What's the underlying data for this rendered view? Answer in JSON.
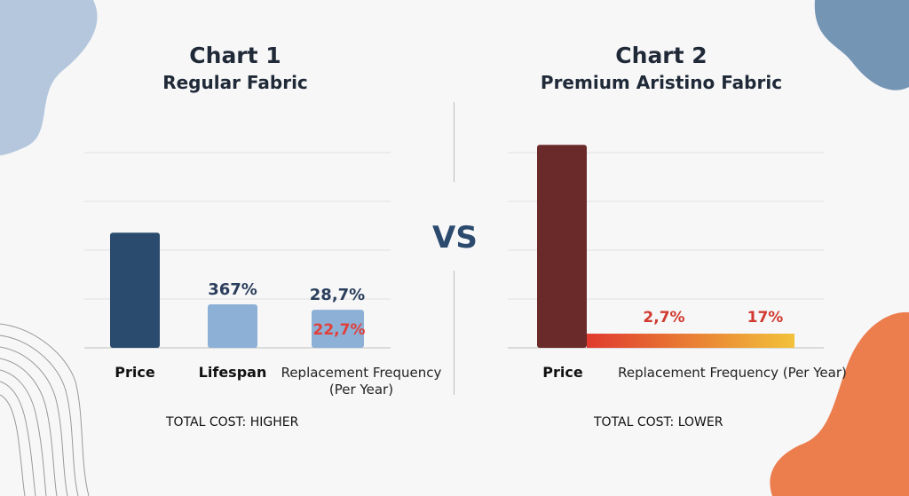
{
  "chart_data": [
    {
      "type": "bar",
      "title": "Chart 1",
      "subtitle": "Regular Fabric",
      "categories": [
        "Price",
        "Lifespan",
        "Replacement Frequency (Per Year)"
      ],
      "category_labels": [
        "Price",
        "Lifespan",
        "Replacement Frequency",
        "(Per Year)"
      ],
      "values": [
        2.36,
        0.89,
        0.78
      ],
      "data_labels": {
        "lifespan": "367%",
        "replacement_top": "28,7%",
        "replacement_inner": "22,7%"
      },
      "ylim": [
        0,
        4
      ],
      "grid": true,
      "footer": "TOTAL COST: HIGHER",
      "colors": {
        "price": "#2a4a6e",
        "others": "#8db0d6",
        "label": "#2b3f5c",
        "label_red": "#e0403a"
      }
    },
    {
      "type": "bar",
      "title": "Chart 2",
      "subtitle": "Premium Aristino Fabric",
      "categories": [
        "Price",
        "Replacement Frequency (Per Year)"
      ],
      "values": [
        4.16,
        0.29
      ],
      "data_labels": [
        "2,7%",
        "17%"
      ],
      "ylim": [
        0,
        4
      ],
      "grid": true,
      "footer": "TOTAL COST: LOWER",
      "colors": {
        "price": "#6b2a2a",
        "gradient_start": "#e03a2e",
        "gradient_end": "#f2c23a",
        "label_red": "#d13a30"
      }
    }
  ],
  "vs_label": "VS"
}
